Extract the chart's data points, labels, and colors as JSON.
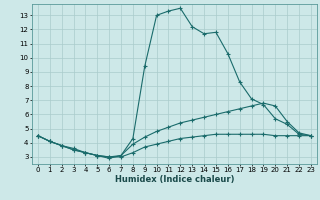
{
  "xlabel": "Humidex (Indice chaleur)",
  "bg_color": "#cde8e8",
  "grid_color": "#aacccc",
  "line_color": "#1a6b6b",
  "xlim": [
    -0.5,
    23.5
  ],
  "ylim": [
    2.5,
    13.8
  ],
  "xticks": [
    0,
    1,
    2,
    3,
    4,
    5,
    6,
    7,
    8,
    9,
    10,
    11,
    12,
    13,
    14,
    15,
    16,
    17,
    18,
    19,
    20,
    21,
    22,
    23
  ],
  "yticks": [
    3,
    4,
    5,
    6,
    7,
    8,
    9,
    10,
    11,
    12,
    13
  ],
  "line1_x": [
    0,
    1,
    2,
    3,
    4,
    5,
    6,
    7,
    8,
    9,
    10,
    11,
    12,
    13,
    14,
    15,
    16,
    17,
    18,
    19,
    20,
    21,
    22,
    23
  ],
  "line1_y": [
    4.5,
    4.1,
    3.8,
    3.6,
    3.3,
    3.1,
    2.9,
    3.1,
    4.3,
    9.4,
    13.0,
    13.3,
    13.5,
    12.2,
    11.7,
    11.8,
    10.3,
    8.3,
    7.1,
    6.7,
    5.7,
    5.3,
    4.6,
    4.5
  ],
  "line2_x": [
    0,
    1,
    2,
    3,
    4,
    5,
    6,
    7,
    8,
    9,
    10,
    11,
    12,
    13,
    14,
    15,
    16,
    17,
    18,
    19,
    20,
    21,
    22,
    23
  ],
  "line2_y": [
    4.5,
    4.1,
    3.8,
    3.5,
    3.3,
    3.1,
    3.0,
    3.1,
    3.9,
    4.4,
    4.8,
    5.1,
    5.4,
    5.6,
    5.8,
    6.0,
    6.2,
    6.4,
    6.6,
    6.8,
    6.6,
    5.5,
    4.7,
    4.5
  ],
  "line3_x": [
    0,
    1,
    2,
    3,
    4,
    5,
    6,
    7,
    8,
    9,
    10,
    11,
    12,
    13,
    14,
    15,
    16,
    17,
    18,
    19,
    20,
    21,
    22,
    23
  ],
  "line3_y": [
    4.5,
    4.1,
    3.8,
    3.5,
    3.3,
    3.1,
    3.0,
    3.0,
    3.3,
    3.7,
    3.9,
    4.1,
    4.3,
    4.4,
    4.5,
    4.6,
    4.6,
    4.6,
    4.6,
    4.6,
    4.5,
    4.5,
    4.5,
    4.5
  ]
}
